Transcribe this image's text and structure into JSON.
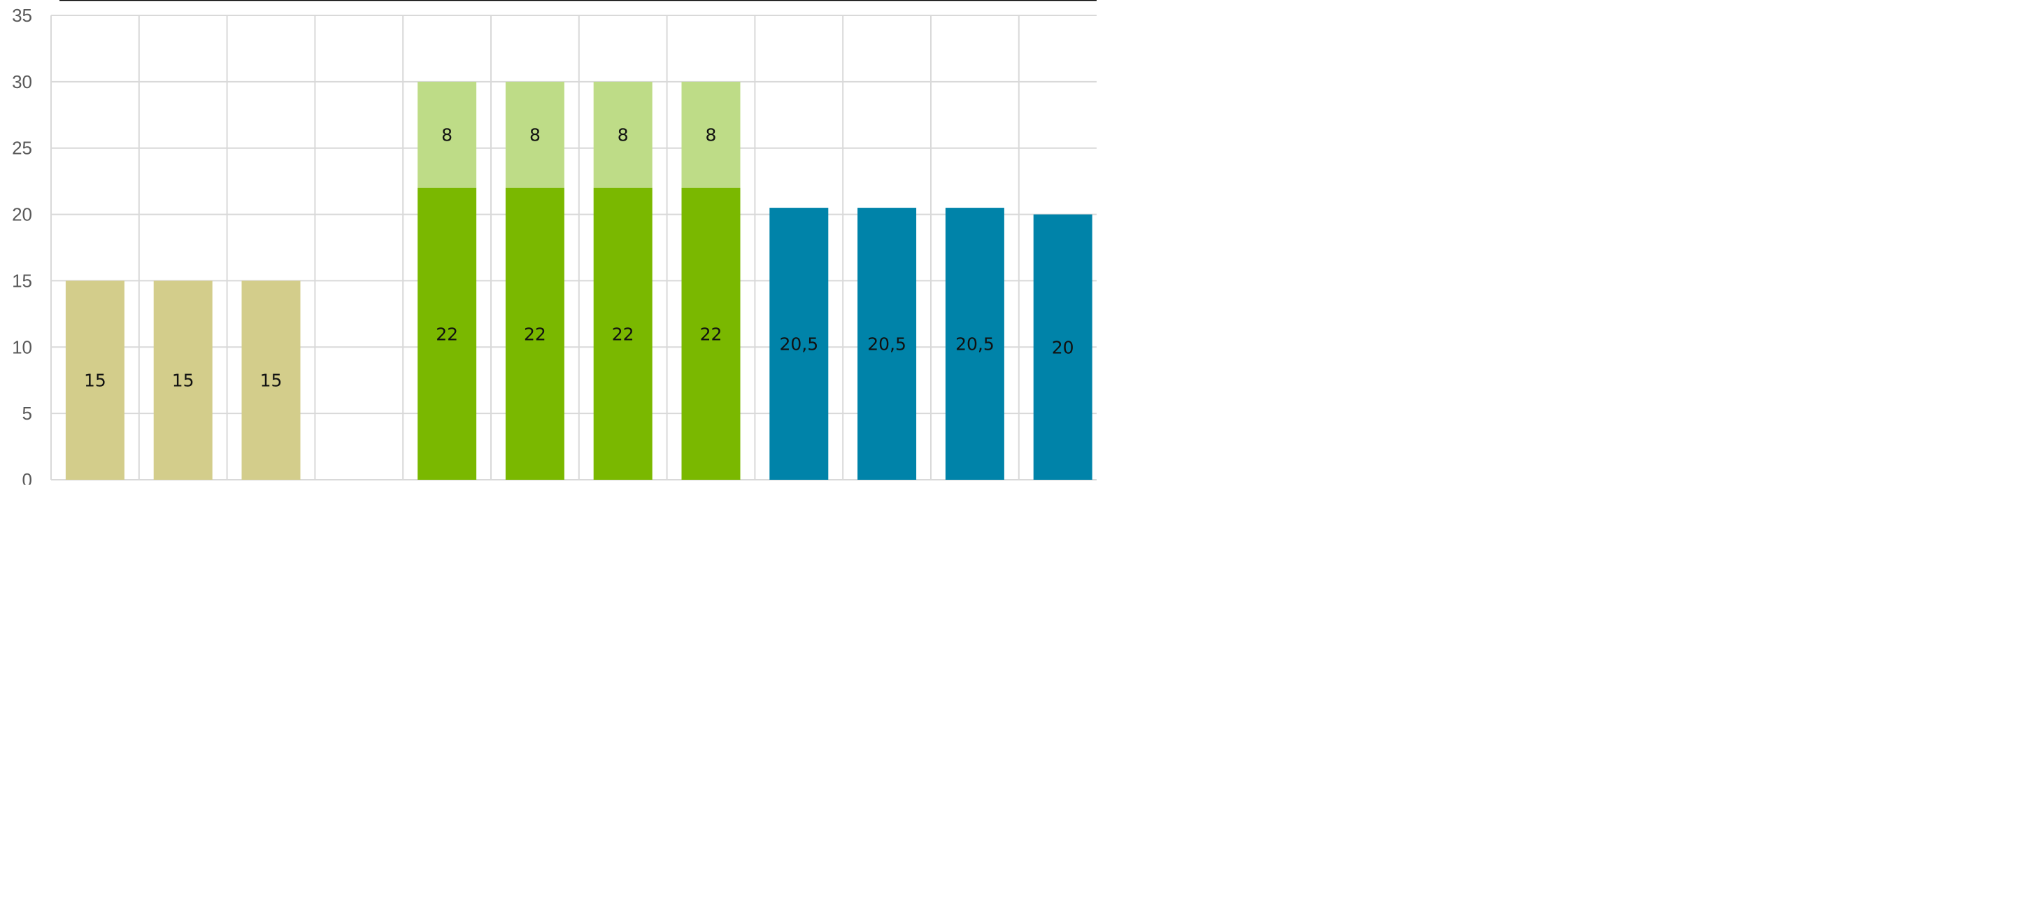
{
  "chart_data": {
    "type": "bar",
    "stacked": true,
    "title": "",
    "xlabel": "",
    "ylabel": "",
    "ylim": [
      0,
      35
    ],
    "yticks": [
      "0",
      "5",
      "10",
      "15",
      "20",
      "25",
      "30",
      "35"
    ],
    "grid": true,
    "legend": "none",
    "categories": [
      "",
      "",
      "",
      "",
      "",
      "",
      "",
      "",
      "",
      "",
      "",
      ""
    ],
    "series": [
      {
        "values": [
          15,
          15,
          15,
          0,
          22,
          22,
          22,
          22,
          20.5,
          20.5,
          20.5,
          20
        ],
        "labels": [
          "15",
          "15",
          "15",
          "",
          "22",
          "22",
          "22",
          "22",
          "20,5",
          "20,5",
          "20,5",
          "20"
        ],
        "colors": [
          "#d3cd8b",
          "#d3cd8b",
          "#d3cd8b",
          "#d3cd8b",
          "#7ab800",
          "#7ab800",
          "#7ab800",
          "#7ab800",
          "#0083a9",
          "#0083a9",
          "#0083a9",
          "#0083a9"
        ]
      },
      {
        "values": [
          0,
          0,
          0,
          0,
          8,
          8,
          8,
          8,
          0,
          0,
          0,
          0
        ],
        "labels": [
          "",
          "",
          "",
          "",
          "8",
          "8",
          "8",
          "8",
          "",
          "",
          "",
          ""
        ],
        "colors": [
          "#bedc87",
          "#bedc87",
          "#bedc87",
          "#bedc87",
          "#bedc87",
          "#bedc87",
          "#bedc87",
          "#bedc87",
          "#bedc87",
          "#bedc87",
          "#bedc87",
          "#bedc87"
        ]
      }
    ],
    "colors": {
      "grid": "#d9d9d9",
      "axis_text": "#595959",
      "label_text": "#111111",
      "top_rule": "#000000"
    }
  }
}
